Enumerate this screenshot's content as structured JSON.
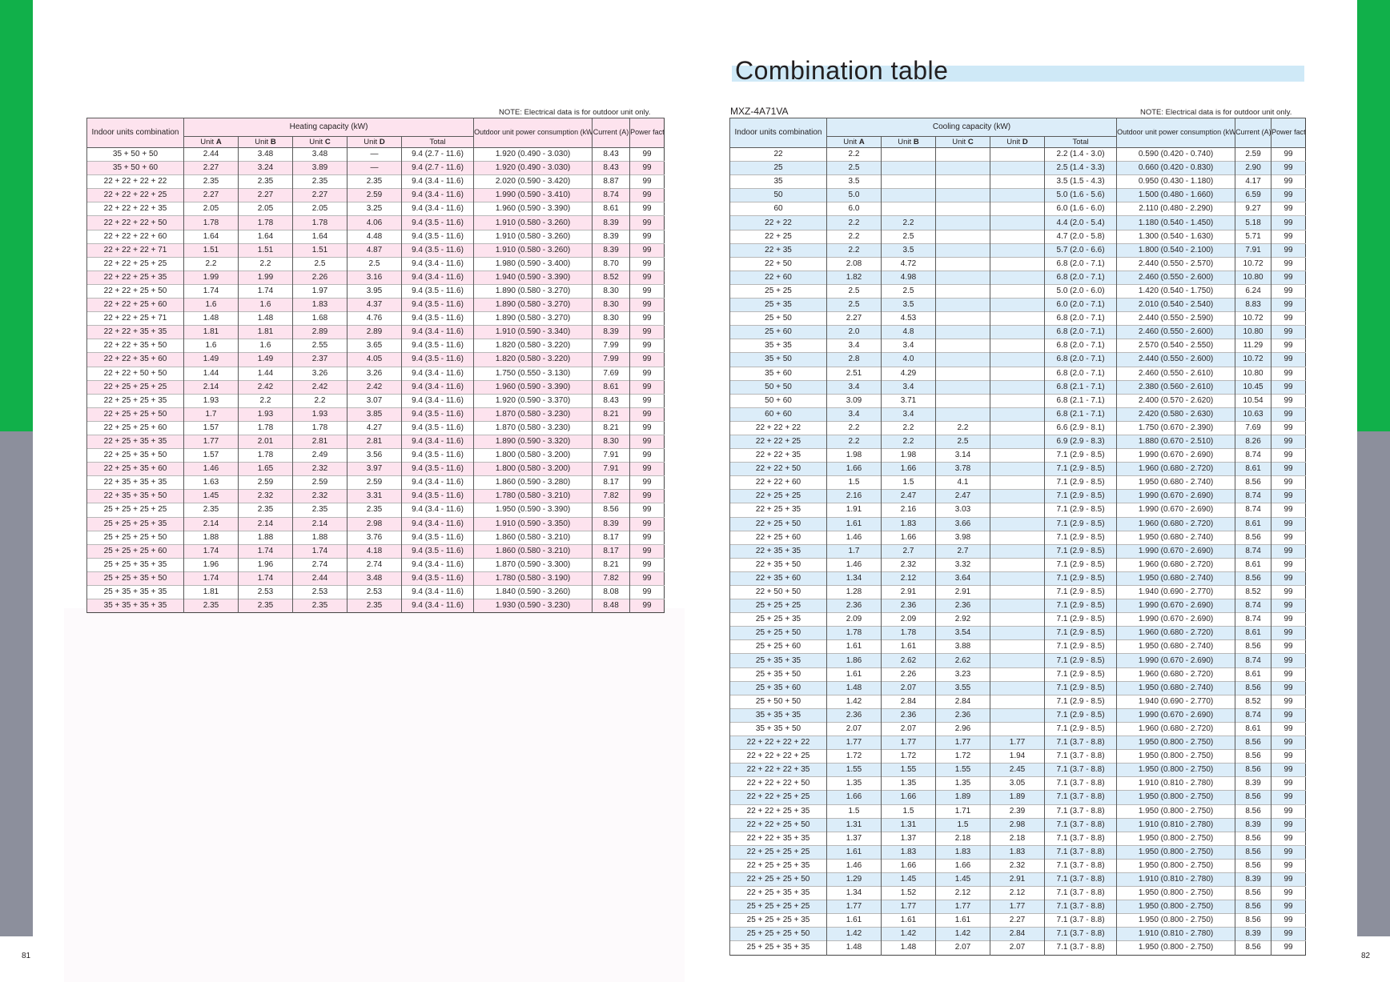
{
  "colors": {
    "green_tab": "#11b04a",
    "gray_tab": "#8c8f9c",
    "pink_row": "#fde3ee",
    "blue_row": "#dcedf9",
    "title_band": "#cfe9f7"
  },
  "pages": {
    "left_number": "81",
    "right_number": "82"
  },
  "title": "Combination table",
  "model": "MXZ-4A71VA",
  "heating": {
    "note": "NOTE: Electrical data is for outdoor unit only.",
    "headers": {
      "indoor": "Indoor units combination",
      "capacity": "Heating capacity (kW)",
      "unit_word": "Unit",
      "units": [
        "A",
        "B",
        "C",
        "D"
      ],
      "total": "Total",
      "power": "Outdoor unit power consumption (kW)",
      "current": "Current (A)",
      "pf": "Power factor (%)"
    },
    "rows": [
      [
        "35 + 50 + 50",
        "2.44",
        "3.48",
        "3.48",
        "—",
        "9.4 (2.7 - 11.6)",
        "1.920 (0.490 - 3.030)",
        "8.43",
        "99"
      ],
      [
        "35 + 50 + 60",
        "2.27",
        "3.24",
        "3.89",
        "—",
        "9.4 (2.7 - 11.6)",
        "1.920 (0.490 - 3.030)",
        "8.43",
        "99"
      ],
      [
        "22 + 22 + 22 + 22",
        "2.35",
        "2.35",
        "2.35",
        "2.35",
        "9.4 (3.4 - 11.6)",
        "2.020 (0.590 - 3.420)",
        "8.87",
        "99"
      ],
      [
        "22 + 22 + 22 + 25",
        "2.27",
        "2.27",
        "2.27",
        "2.59",
        "9.4 (3.4 - 11.6)",
        "1.990 (0.590 - 3.410)",
        "8.74",
        "99"
      ],
      [
        "22 + 22 + 22 + 35",
        "2.05",
        "2.05",
        "2.05",
        "3.25",
        "9.4 (3.4 - 11.6)",
        "1.960 (0.590 - 3.390)",
        "8.61",
        "99"
      ],
      [
        "22 + 22 + 22 + 50",
        "1.78",
        "1.78",
        "1.78",
        "4.06",
        "9.4 (3.5 - 11.6)",
        "1.910 (0.580 - 3.260)",
        "8.39",
        "99"
      ],
      [
        "22 + 22 + 22 + 60",
        "1.64",
        "1.64",
        "1.64",
        "4.48",
        "9.4 (3.5 - 11.6)",
        "1.910 (0.580 - 3.260)",
        "8.39",
        "99"
      ],
      [
        "22 + 22 + 22 + 71",
        "1.51",
        "1.51",
        "1.51",
        "4.87",
        "9.4 (3.5 - 11.6)",
        "1.910 (0.580 - 3.260)",
        "8.39",
        "99"
      ],
      [
        "22 + 22 + 25 + 25",
        "2.2",
        "2.2",
        "2.5",
        "2.5",
        "9.4 (3.4 - 11.6)",
        "1.980 (0.590 - 3.400)",
        "8.70",
        "99"
      ],
      [
        "22 + 22 + 25 + 35",
        "1.99",
        "1.99",
        "2.26",
        "3.16",
        "9.4 (3.4 - 11.6)",
        "1.940 (0.590 - 3.390)",
        "8.52",
        "99"
      ],
      [
        "22 + 22 + 25 + 50",
        "1.74",
        "1.74",
        "1.97",
        "3.95",
        "9.4 (3.5 - 11.6)",
        "1.890 (0.580 - 3.270)",
        "8.30",
        "99"
      ],
      [
        "22 + 22 + 25 + 60",
        "1.6",
        "1.6",
        "1.83",
        "4.37",
        "9.4 (3.5 - 11.6)",
        "1.890 (0.580 - 3.270)",
        "8.30",
        "99"
      ],
      [
        "22 + 22 + 25 + 71",
        "1.48",
        "1.48",
        "1.68",
        "4.76",
        "9.4 (3.5 - 11.6)",
        "1.890 (0.580 - 3.270)",
        "8.30",
        "99"
      ],
      [
        "22 + 22 + 35 + 35",
        "1.81",
        "1.81",
        "2.89",
        "2.89",
        "9.4 (3.4 - 11.6)",
        "1.910 (0.590 - 3.340)",
        "8.39",
        "99"
      ],
      [
        "22 + 22 + 35 + 50",
        "1.6",
        "1.6",
        "2.55",
        "3.65",
        "9.4 (3.5 - 11.6)",
        "1.820 (0.580 - 3.220)",
        "7.99",
        "99"
      ],
      [
        "22 + 22 + 35 + 60",
        "1.49",
        "1.49",
        "2.37",
        "4.05",
        "9.4 (3.5 - 11.6)",
        "1.820 (0.580 - 3.220)",
        "7.99",
        "99"
      ],
      [
        "22 + 22 + 50 + 50",
        "1.44",
        "1.44",
        "3.26",
        "3.26",
        "9.4 (3.4 - 11.6)",
        "1.750 (0.550 - 3.130)",
        "7.69",
        "99"
      ],
      [
        "22 + 25 + 25 + 25",
        "2.14",
        "2.42",
        "2.42",
        "2.42",
        "9.4 (3.4 - 11.6)",
        "1.960 (0.590 - 3.390)",
        "8.61",
        "99"
      ],
      [
        "22 + 25 + 25 + 35",
        "1.93",
        "2.2",
        "2.2",
        "3.07",
        "9.4 (3.4 - 11.6)",
        "1.920 (0.590 - 3.370)",
        "8.43",
        "99"
      ],
      [
        "22 + 25 + 25 + 50",
        "1.7",
        "1.93",
        "1.93",
        "3.85",
        "9.4 (3.5 - 11.6)",
        "1.870 (0.580 - 3.230)",
        "8.21",
        "99"
      ],
      [
        "22 + 25 + 25 + 60",
        "1.57",
        "1.78",
        "1.78",
        "4.27",
        "9.4 (3.5 - 11.6)",
        "1.870 (0.580 - 3.230)",
        "8.21",
        "99"
      ],
      [
        "22 + 25 + 35 + 35",
        "1.77",
        "2.01",
        "2.81",
        "2.81",
        "9.4 (3.4 - 11.6)",
        "1.890 (0.590 - 3.320)",
        "8.30",
        "99"
      ],
      [
        "22 + 25 + 35 + 50",
        "1.57",
        "1.78",
        "2.49",
        "3.56",
        "9.4 (3.5 - 11.6)",
        "1.800 (0.580 - 3.200)",
        "7.91",
        "99"
      ],
      [
        "22 + 25 + 35 + 60",
        "1.46",
        "1.65",
        "2.32",
        "3.97",
        "9.4 (3.5 - 11.6)",
        "1.800 (0.580 - 3.200)",
        "7.91",
        "99"
      ],
      [
        "22 + 35 + 35 + 35",
        "1.63",
        "2.59",
        "2.59",
        "2.59",
        "9.4 (3.4 - 11.6)",
        "1.860 (0.590 - 3.280)",
        "8.17",
        "99"
      ],
      [
        "22 + 35 + 35 + 50",
        "1.45",
        "2.32",
        "2.32",
        "3.31",
        "9.4 (3.5 - 11.6)",
        "1.780 (0.580 - 3.210)",
        "7.82",
        "99"
      ],
      [
        "25 + 25 + 25 + 25",
        "2.35",
        "2.35",
        "2.35",
        "2.35",
        "9.4 (3.4 - 11.6)",
        "1.950 (0.590 - 3.390)",
        "8.56",
        "99"
      ],
      [
        "25 + 25 + 25 + 35",
        "2.14",
        "2.14",
        "2.14",
        "2.98",
        "9.4 (3.4 - 11.6)",
        "1.910 (0.590 - 3.350)",
        "8.39",
        "99"
      ],
      [
        "25 + 25 + 25 + 50",
        "1.88",
        "1.88",
        "1.88",
        "3.76",
        "9.4 (3.5 - 11.6)",
        "1.860 (0.580 - 3.210)",
        "8.17",
        "99"
      ],
      [
        "25 + 25 + 25 + 60",
        "1.74",
        "1.74",
        "1.74",
        "4.18",
        "9.4 (3.5 - 11.6)",
        "1.860 (0.580 - 3.210)",
        "8.17",
        "99"
      ],
      [
        "25 + 25 + 35 + 35",
        "1.96",
        "1.96",
        "2.74",
        "2.74",
        "9.4 (3.4 - 11.6)",
        "1.870 (0.590 - 3.300)",
        "8.21",
        "99"
      ],
      [
        "25 + 25 + 35 + 50",
        "1.74",
        "1.74",
        "2.44",
        "3.48",
        "9.4 (3.5 - 11.6)",
        "1.780 (0.580 - 3.190)",
        "7.82",
        "99"
      ],
      [
        "25 + 35 + 35 + 35",
        "1.81",
        "2.53",
        "2.53",
        "2.53",
        "9.4 (3.4 - 11.6)",
        "1.840 (0.590 - 3.260)",
        "8.08",
        "99"
      ],
      [
        "35 + 35 + 35 + 35",
        "2.35",
        "2.35",
        "2.35",
        "2.35",
        "9.4 (3.4 - 11.6)",
        "1.930 (0.590 - 3.230)",
        "8.48",
        "99"
      ]
    ]
  },
  "cooling": {
    "note": "NOTE: Electrical data is for outdoor unit only.",
    "headers": {
      "indoor": "Indoor units combination",
      "capacity": "Cooling capacity (kW)",
      "unit_word": "Unit",
      "units": [
        "A",
        "B",
        "C",
        "D"
      ],
      "total": "Total",
      "power": "Outdoor unit power consumption (kW)",
      "current": "Current (A)",
      "pf": "Power factor (%)"
    },
    "rows": [
      [
        "22",
        "2.2",
        "",
        "",
        "",
        "2.2 (1.4 - 3.0)",
        "0.590 (0.420 - 0.740)",
        "2.59",
        "99"
      ],
      [
        "25",
        "2.5",
        "",
        "",
        "",
        "2.5 (1.4 - 3.3)",
        "0.660 (0.420 - 0.830)",
        "2.90",
        "99"
      ],
      [
        "35",
        "3.5",
        "",
        "",
        "",
        "3.5 (1.5 - 4.3)",
        "0.950 (0.430 - 1.180)",
        "4.17",
        "99"
      ],
      [
        "50",
        "5.0",
        "",
        "",
        "",
        "5.0 (1.6 - 5.6)",
        "1.500 (0.480 - 1.660)",
        "6.59",
        "99"
      ],
      [
        "60",
        "6.0",
        "",
        "",
        "",
        "6.0 (1.6 - 6.0)",
        "2.110 (0.480 - 2.290)",
        "9.27",
        "99"
      ],
      [
        "22 + 22",
        "2.2",
        "2.2",
        "",
        "",
        "4.4 (2.0 - 5.4)",
        "1.180 (0.540 - 1.450)",
        "5.18",
        "99"
      ],
      [
        "22 + 25",
        "2.2",
        "2.5",
        "",
        "",
        "4.7 (2.0 - 5.8)",
        "1.300 (0.540 - 1.630)",
        "5.71",
        "99"
      ],
      [
        "22 + 35",
        "2.2",
        "3.5",
        "",
        "",
        "5.7 (2.0 - 6.6)",
        "1.800 (0.540 - 2.100)",
        "7.91",
        "99"
      ],
      [
        "22 + 50",
        "2.08",
        "4.72",
        "",
        "",
        "6.8 (2.0 - 7.1)",
        "2.440 (0.550 - 2.570)",
        "10.72",
        "99"
      ],
      [
        "22 + 60",
        "1.82",
        "4.98",
        "",
        "",
        "6.8 (2.0 - 7.1)",
        "2.460 (0.550 - 2.600)",
        "10.80",
        "99"
      ],
      [
        "25 + 25",
        "2.5",
        "2.5",
        "",
        "",
        "5.0 (2.0 - 6.0)",
        "1.420 (0.540 - 1.750)",
        "6.24",
        "99"
      ],
      [
        "25 + 35",
        "2.5",
        "3.5",
        "",
        "",
        "6.0 (2.0 - 7.1)",
        "2.010 (0.540 - 2.540)",
        "8.83",
        "99"
      ],
      [
        "25 + 50",
        "2.27",
        "4.53",
        "",
        "",
        "6.8 (2.0 - 7.1)",
        "2.440 (0.550 - 2.590)",
        "10.72",
        "99"
      ],
      [
        "25 + 60",
        "2.0",
        "4.8",
        "",
        "",
        "6.8 (2.0 - 7.1)",
        "2.460 (0.550 - 2.600)",
        "10.80",
        "99"
      ],
      [
        "35 + 35",
        "3.4",
        "3.4",
        "",
        "",
        "6.8 (2.0 - 7.1)",
        "2.570 (0.540 - 2.550)",
        "11.29",
        "99"
      ],
      [
        "35 + 50",
        "2.8",
        "4.0",
        "",
        "",
        "6.8 (2.0 - 7.1)",
        "2.440 (0.550 - 2.600)",
        "10.72",
        "99"
      ],
      [
        "35 + 60",
        "2.51",
        "4.29",
        "",
        "",
        "6.8 (2.0 - 7.1)",
        "2.460 (0.550 - 2.610)",
        "10.80",
        "99"
      ],
      [
        "50 + 50",
        "3.4",
        "3.4",
        "",
        "",
        "6.8 (2.1 - 7.1)",
        "2.380 (0.560 - 2.610)",
        "10.45",
        "99"
      ],
      [
        "50 + 60",
        "3.09",
        "3.71",
        "",
        "",
        "6.8 (2.1 - 7.1)",
        "2.400 (0.570 - 2.620)",
        "10.54",
        "99"
      ],
      [
        "60 + 60",
        "3.4",
        "3.4",
        "",
        "",
        "6.8 (2.1 - 7.1)",
        "2.420 (0.580 - 2.630)",
        "10.63",
        "99"
      ],
      [
        "22 + 22 + 22",
        "2.2",
        "2.2",
        "2.2",
        "",
        "6.6 (2.9 - 8.1)",
        "1.750 (0.670 - 2.390)",
        "7.69",
        "99"
      ],
      [
        "22 + 22 + 25",
        "2.2",
        "2.2",
        "2.5",
        "",
        "6.9 (2.9 - 8.3)",
        "1.880 (0.670 - 2.510)",
        "8.26",
        "99"
      ],
      [
        "22 + 22 + 35",
        "1.98",
        "1.98",
        "3.14",
        "",
        "7.1 (2.9 - 8.5)",
        "1.990 (0.670 - 2.690)",
        "8.74",
        "99"
      ],
      [
        "22 + 22 + 50",
        "1.66",
        "1.66",
        "3.78",
        "",
        "7.1 (2.9 - 8.5)",
        "1.960 (0.680 - 2.720)",
        "8.61",
        "99"
      ],
      [
        "22 + 22 + 60",
        "1.5",
        "1.5",
        "4.1",
        "",
        "7.1 (2.9 - 8.5)",
        "1.950 (0.680 - 2.740)",
        "8.56",
        "99"
      ],
      [
        "22 + 25 + 25",
        "2.16",
        "2.47",
        "2.47",
        "",
        "7.1 (2.9 - 8.5)",
        "1.990 (0.670 - 2.690)",
        "8.74",
        "99"
      ],
      [
        "22 + 25 + 35",
        "1.91",
        "2.16",
        "3.03",
        "",
        "7.1 (2.9 - 8.5)",
        "1.990 (0.670 - 2.690)",
        "8.74",
        "99"
      ],
      [
        "22 + 25 + 50",
        "1.61",
        "1.83",
        "3.66",
        "",
        "7.1 (2.9 - 8.5)",
        "1.960 (0.680 - 2.720)",
        "8.61",
        "99"
      ],
      [
        "22 + 25 + 60",
        "1.46",
        "1.66",
        "3.98",
        "",
        "7.1 (2.9 - 8.5)",
        "1.950 (0.680 - 2.740)",
        "8.56",
        "99"
      ],
      [
        "22 + 35 + 35",
        "1.7",
        "2.7",
        "2.7",
        "",
        "7.1 (2.9 - 8.5)",
        "1.990 (0.670 - 2.690)",
        "8.74",
        "99"
      ],
      [
        "22 + 35 + 50",
        "1.46",
        "2.32",
        "3.32",
        "",
        "7.1 (2.9 - 8.5)",
        "1.960 (0.680 - 2.720)",
        "8.61",
        "99"
      ],
      [
        "22 + 35 + 60",
        "1.34",
        "2.12",
        "3.64",
        "",
        "7.1 (2.9 - 8.5)",
        "1.950 (0.680 - 2.740)",
        "8.56",
        "99"
      ],
      [
        "22 + 50 + 50",
        "1.28",
        "2.91",
        "2.91",
        "",
        "7.1 (2.9 - 8.5)",
        "1.940 (0.690 - 2.770)",
        "8.52",
        "99"
      ],
      [
        "25 + 25 + 25",
        "2.36",
        "2.36",
        "2.36",
        "",
        "7.1 (2.9 - 8.5)",
        "1.990 (0.670 - 2.690)",
        "8.74",
        "99"
      ],
      [
        "25 + 25 + 35",
        "2.09",
        "2.09",
        "2.92",
        "",
        "7.1 (2.9 - 8.5)",
        "1.990 (0.670 - 2.690)",
        "8.74",
        "99"
      ],
      [
        "25 + 25 + 50",
        "1.78",
        "1.78",
        "3.54",
        "",
        "7.1 (2.9 - 8.5)",
        "1.960 (0.680 - 2.720)",
        "8.61",
        "99"
      ],
      [
        "25 + 25 + 60",
        "1.61",
        "1.61",
        "3.88",
        "",
        "7.1 (2.9 - 8.5)",
        "1.950 (0.680 - 2.740)",
        "8.56",
        "99"
      ],
      [
        "25 + 35 + 35",
        "1.86",
        "2.62",
        "2.62",
        "",
        "7.1 (2.9 - 8.5)",
        "1.990 (0.670 - 2.690)",
        "8.74",
        "99"
      ],
      [
        "25 + 35 + 50",
        "1.61",
        "2.26",
        "3.23",
        "",
        "7.1 (2.9 - 8.5)",
        "1.960 (0.680 - 2.720)",
        "8.61",
        "99"
      ],
      [
        "25 + 35 + 60",
        "1.48",
        "2.07",
        "3.55",
        "",
        "7.1 (2.9 - 8.5)",
        "1.950 (0.680 - 2.740)",
        "8.56",
        "99"
      ],
      [
        "25 + 50 + 50",
        "1.42",
        "2.84",
        "2.84",
        "",
        "7.1 (2.9 - 8.5)",
        "1.940 (0.690 - 2.770)",
        "8.52",
        "99"
      ],
      [
        "35 + 35 + 35",
        "2.36",
        "2.36",
        "2.36",
        "",
        "7.1 (2.9 - 8.5)",
        "1.990 (0.670 - 2.690)",
        "8.74",
        "99"
      ],
      [
        "35 + 35 + 50",
        "2.07",
        "2.07",
        "2.96",
        "",
        "7.1 (2.9 - 8.5)",
        "1.960 (0.680 - 2.720)",
        "8.61",
        "99"
      ],
      [
        "22 + 22 + 22 + 22",
        "1.77",
        "1.77",
        "1.77",
        "1.77",
        "7.1 (3.7 - 8.8)",
        "1.950 (0.800 - 2.750)",
        "8.56",
        "99"
      ],
      [
        "22 + 22 + 22 + 25",
        "1.72",
        "1.72",
        "1.72",
        "1.94",
        "7.1 (3.7 - 8.8)",
        "1.950 (0.800 - 2.750)",
        "8.56",
        "99"
      ],
      [
        "22 + 22 + 22 + 35",
        "1.55",
        "1.55",
        "1.55",
        "2.45",
        "7.1 (3.7 - 8.8)",
        "1.950 (0.800 - 2.750)",
        "8.56",
        "99"
      ],
      [
        "22 + 22 + 22 + 50",
        "1.35",
        "1.35",
        "1.35",
        "3.05",
        "7.1 (3.7 - 8.8)",
        "1.910 (0.810 - 2.780)",
        "8.39",
        "99"
      ],
      [
        "22 + 22 + 25 + 25",
        "1.66",
        "1.66",
        "1.89",
        "1.89",
        "7.1 (3.7 - 8.8)",
        "1.950 (0.800 - 2.750)",
        "8.56",
        "99"
      ],
      [
        "22 + 22 + 25 + 35",
        "1.5",
        "1.5",
        "1.71",
        "2.39",
        "7.1 (3.7 - 8.8)",
        "1.950 (0.800 - 2.750)",
        "8.56",
        "99"
      ],
      [
        "22 + 22 + 25 + 50",
        "1.31",
        "1.31",
        "1.5",
        "2.98",
        "7.1 (3.7 - 8.8)",
        "1.910 (0.810 - 2.780)",
        "8.39",
        "99"
      ],
      [
        "22 + 22 + 35 + 35",
        "1.37",
        "1.37",
        "2.18",
        "2.18",
        "7.1 (3.7 - 8.8)",
        "1.950 (0.800 - 2.750)",
        "8.56",
        "99"
      ],
      [
        "22 + 25 + 25 + 25",
        "1.61",
        "1.83",
        "1.83",
        "1.83",
        "7.1 (3.7 - 8.8)",
        "1.950 (0.800 - 2.750)",
        "8.56",
        "99"
      ],
      [
        "22 + 25 + 25 + 35",
        "1.46",
        "1.66",
        "1.66",
        "2.32",
        "7.1 (3.7 - 8.8)",
        "1.950 (0.800 - 2.750)",
        "8.56",
        "99"
      ],
      [
        "22 + 25 + 25 + 50",
        "1.29",
        "1.45",
        "1.45",
        "2.91",
        "7.1 (3.7 - 8.8)",
        "1.910 (0.810 - 2.780)",
        "8.39",
        "99"
      ],
      [
        "22 + 25 + 35 + 35",
        "1.34",
        "1.52",
        "2.12",
        "2.12",
        "7.1 (3.7 - 8.8)",
        "1.950 (0.800 - 2.750)",
        "8.56",
        "99"
      ],
      [
        "25 + 25 + 25 + 25",
        "1.77",
        "1.77",
        "1.77",
        "1.77",
        "7.1 (3.7 - 8.8)",
        "1.950 (0.800 - 2.750)",
        "8.56",
        "99"
      ],
      [
        "25 + 25 + 25 + 35",
        "1.61",
        "1.61",
        "1.61",
        "2.27",
        "7.1 (3.7 - 8.8)",
        "1.950 (0.800 - 2.750)",
        "8.56",
        "99"
      ],
      [
        "25 + 25 + 25 + 50",
        "1.42",
        "1.42",
        "1.42",
        "2.84",
        "7.1 (3.7 - 8.8)",
        "1.910 (0.810 - 2.780)",
        "8.39",
        "99"
      ],
      [
        "25 + 25 + 35 + 35",
        "1.48",
        "1.48",
        "2.07",
        "2.07",
        "7.1 (3.7 - 8.8)",
        "1.950 (0.800 - 2.750)",
        "8.56",
        "99"
      ]
    ]
  }
}
